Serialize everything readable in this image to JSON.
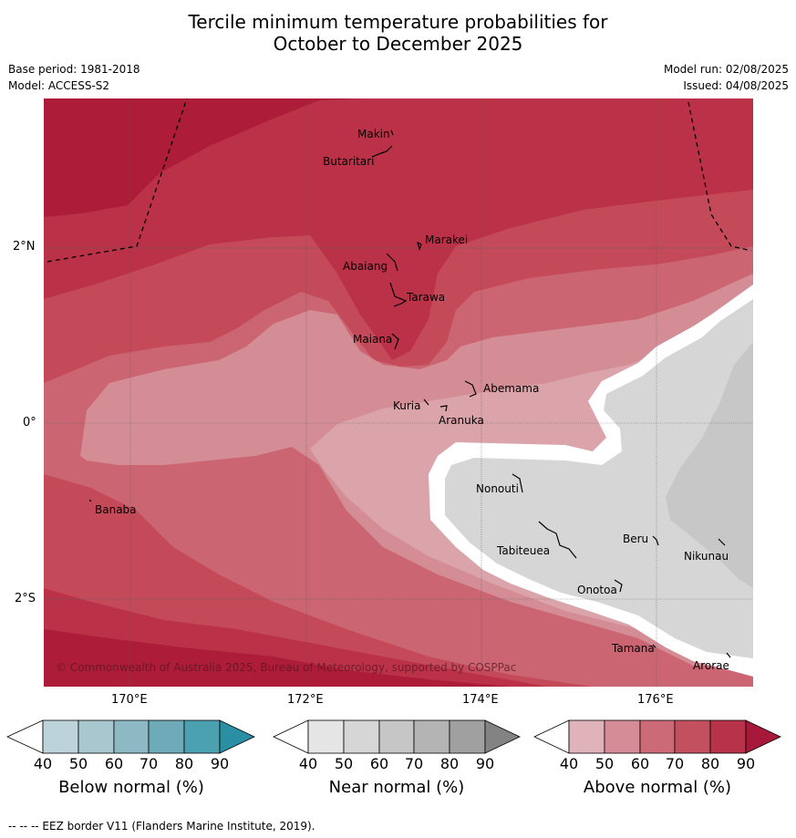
{
  "title_line1": "Tercile minimum temperature probabilities for",
  "title_line2": "October to December 2025",
  "meta": {
    "base_period": "Base period: 1981-2018",
    "model": "Model: ACCESS-S2",
    "model_run": "Model run: 02/08/2025",
    "issued": "Issued: 04/08/2025"
  },
  "axes": {
    "lat_labels": [
      "2°N",
      "0°",
      "2°S"
    ],
    "lon_labels": [
      "170°E",
      "172°E",
      "174°E",
      "176°E"
    ]
  },
  "islands": [
    "Makin",
    "Butaritari",
    "Marakei",
    "Abaiang",
    "Tarawa",
    "Maiana",
    "Abemama",
    "Kuria",
    "Aranuka",
    "Banaba",
    "Nonouti",
    "Beru",
    "Tabiteuea",
    "Nikunau",
    "Onotoa",
    "Tamana",
    "Arorae"
  ],
  "copyright": "© Commonwealth of Australia 2025, Bureau of Meteorology, supported by COSPPac",
  "colorbars": [
    {
      "title": "Below normal (%)",
      "ticks": [
        "40",
        "50",
        "60",
        "70",
        "80",
        "90"
      ],
      "colors": [
        "#bdd3da",
        "#a8c8d0",
        "#8db9c4",
        "#6eaab7",
        "#4ba1b0",
        "#2b8fa4"
      ]
    },
    {
      "title": "Near normal (%)",
      "ticks": [
        "40",
        "50",
        "60",
        "70",
        "80",
        "90"
      ],
      "colors": [
        "#e5e5e5",
        "#d6d6d6",
        "#c6c6c6",
        "#b4b4b4",
        "#a0a0a0",
        "#838383"
      ]
    },
    {
      "title": "Above normal (%)",
      "ticks": [
        "40",
        "50",
        "60",
        "70",
        "80",
        "90"
      ],
      "colors": [
        "#e0b3bb",
        "#d68c96",
        "#cc6b77",
        "#c3505f",
        "#b83249",
        "#a8183a"
      ]
    }
  ],
  "footnote": "--  --  -- EEZ border V11 (Flanders Marine Institute, 2019)."
}
